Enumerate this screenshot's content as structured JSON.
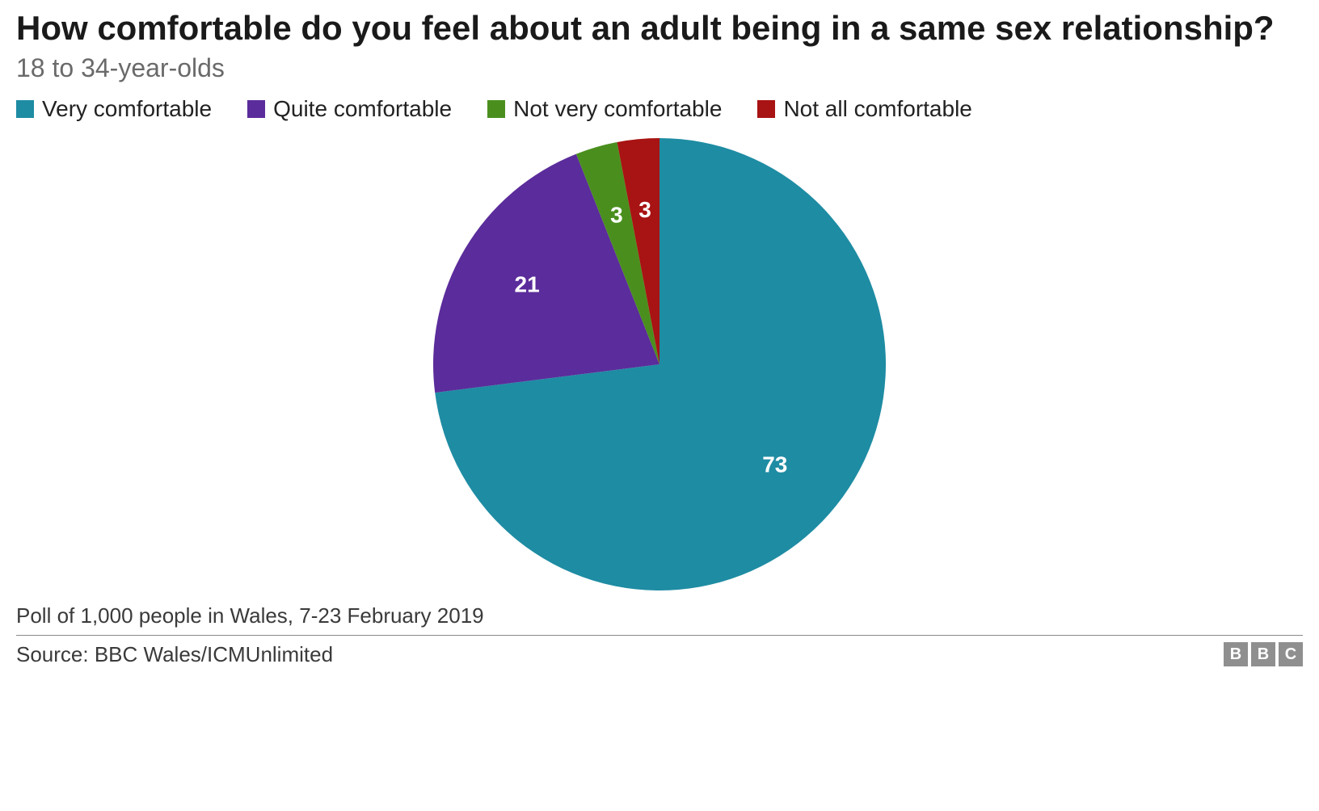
{
  "title": "How comfortable do you feel about an adult being in a same sex relationship?",
  "subtitle": "18 to 34-year-olds",
  "chart": {
    "type": "pie",
    "radius": 280,
    "background_color": "#ffffff",
    "label_color": "#ffffff",
    "label_fontsize": 28,
    "label_fontweight": 700,
    "start_angle_deg": -90,
    "label_radius_factor": 0.68,
    "slices": [
      {
        "label": "Very comfortable",
        "value": 73,
        "color": "#1e8ca3"
      },
      {
        "label": "Quite comfortable",
        "value": 21,
        "color": "#5b2c9b"
      },
      {
        "label": "Not very comfortable",
        "value": 3,
        "color": "#4a8f1e"
      },
      {
        "label": "Not all comfortable",
        "value": 3,
        "color": "#a81313"
      }
    ]
  },
  "legend": {
    "items": [
      {
        "label": "Very comfortable",
        "color": "#1e8ca3"
      },
      {
        "label": "Quite comfortable",
        "color": "#5b2c9b"
      },
      {
        "label": "Not very comfortable",
        "color": "#4a8f1e"
      },
      {
        "label": "Not all comfortable",
        "color": "#a81313"
      }
    ],
    "fontsize": 28,
    "swatch_size": 22
  },
  "footnote": "Poll of 1,000 people in Wales, 7-23 February 2019",
  "source": "Source: BBC Wales/ICMUnlimited",
  "logo": {
    "letters": [
      "B",
      "B",
      "C"
    ],
    "box_color": "#8f8f8f",
    "text_color": "#ffffff"
  },
  "typography": {
    "title_fontsize": 42,
    "title_fontweight": 700,
    "subtitle_fontsize": 32,
    "subtitle_color": "#6a6a6a",
    "footnote_fontsize": 26
  }
}
